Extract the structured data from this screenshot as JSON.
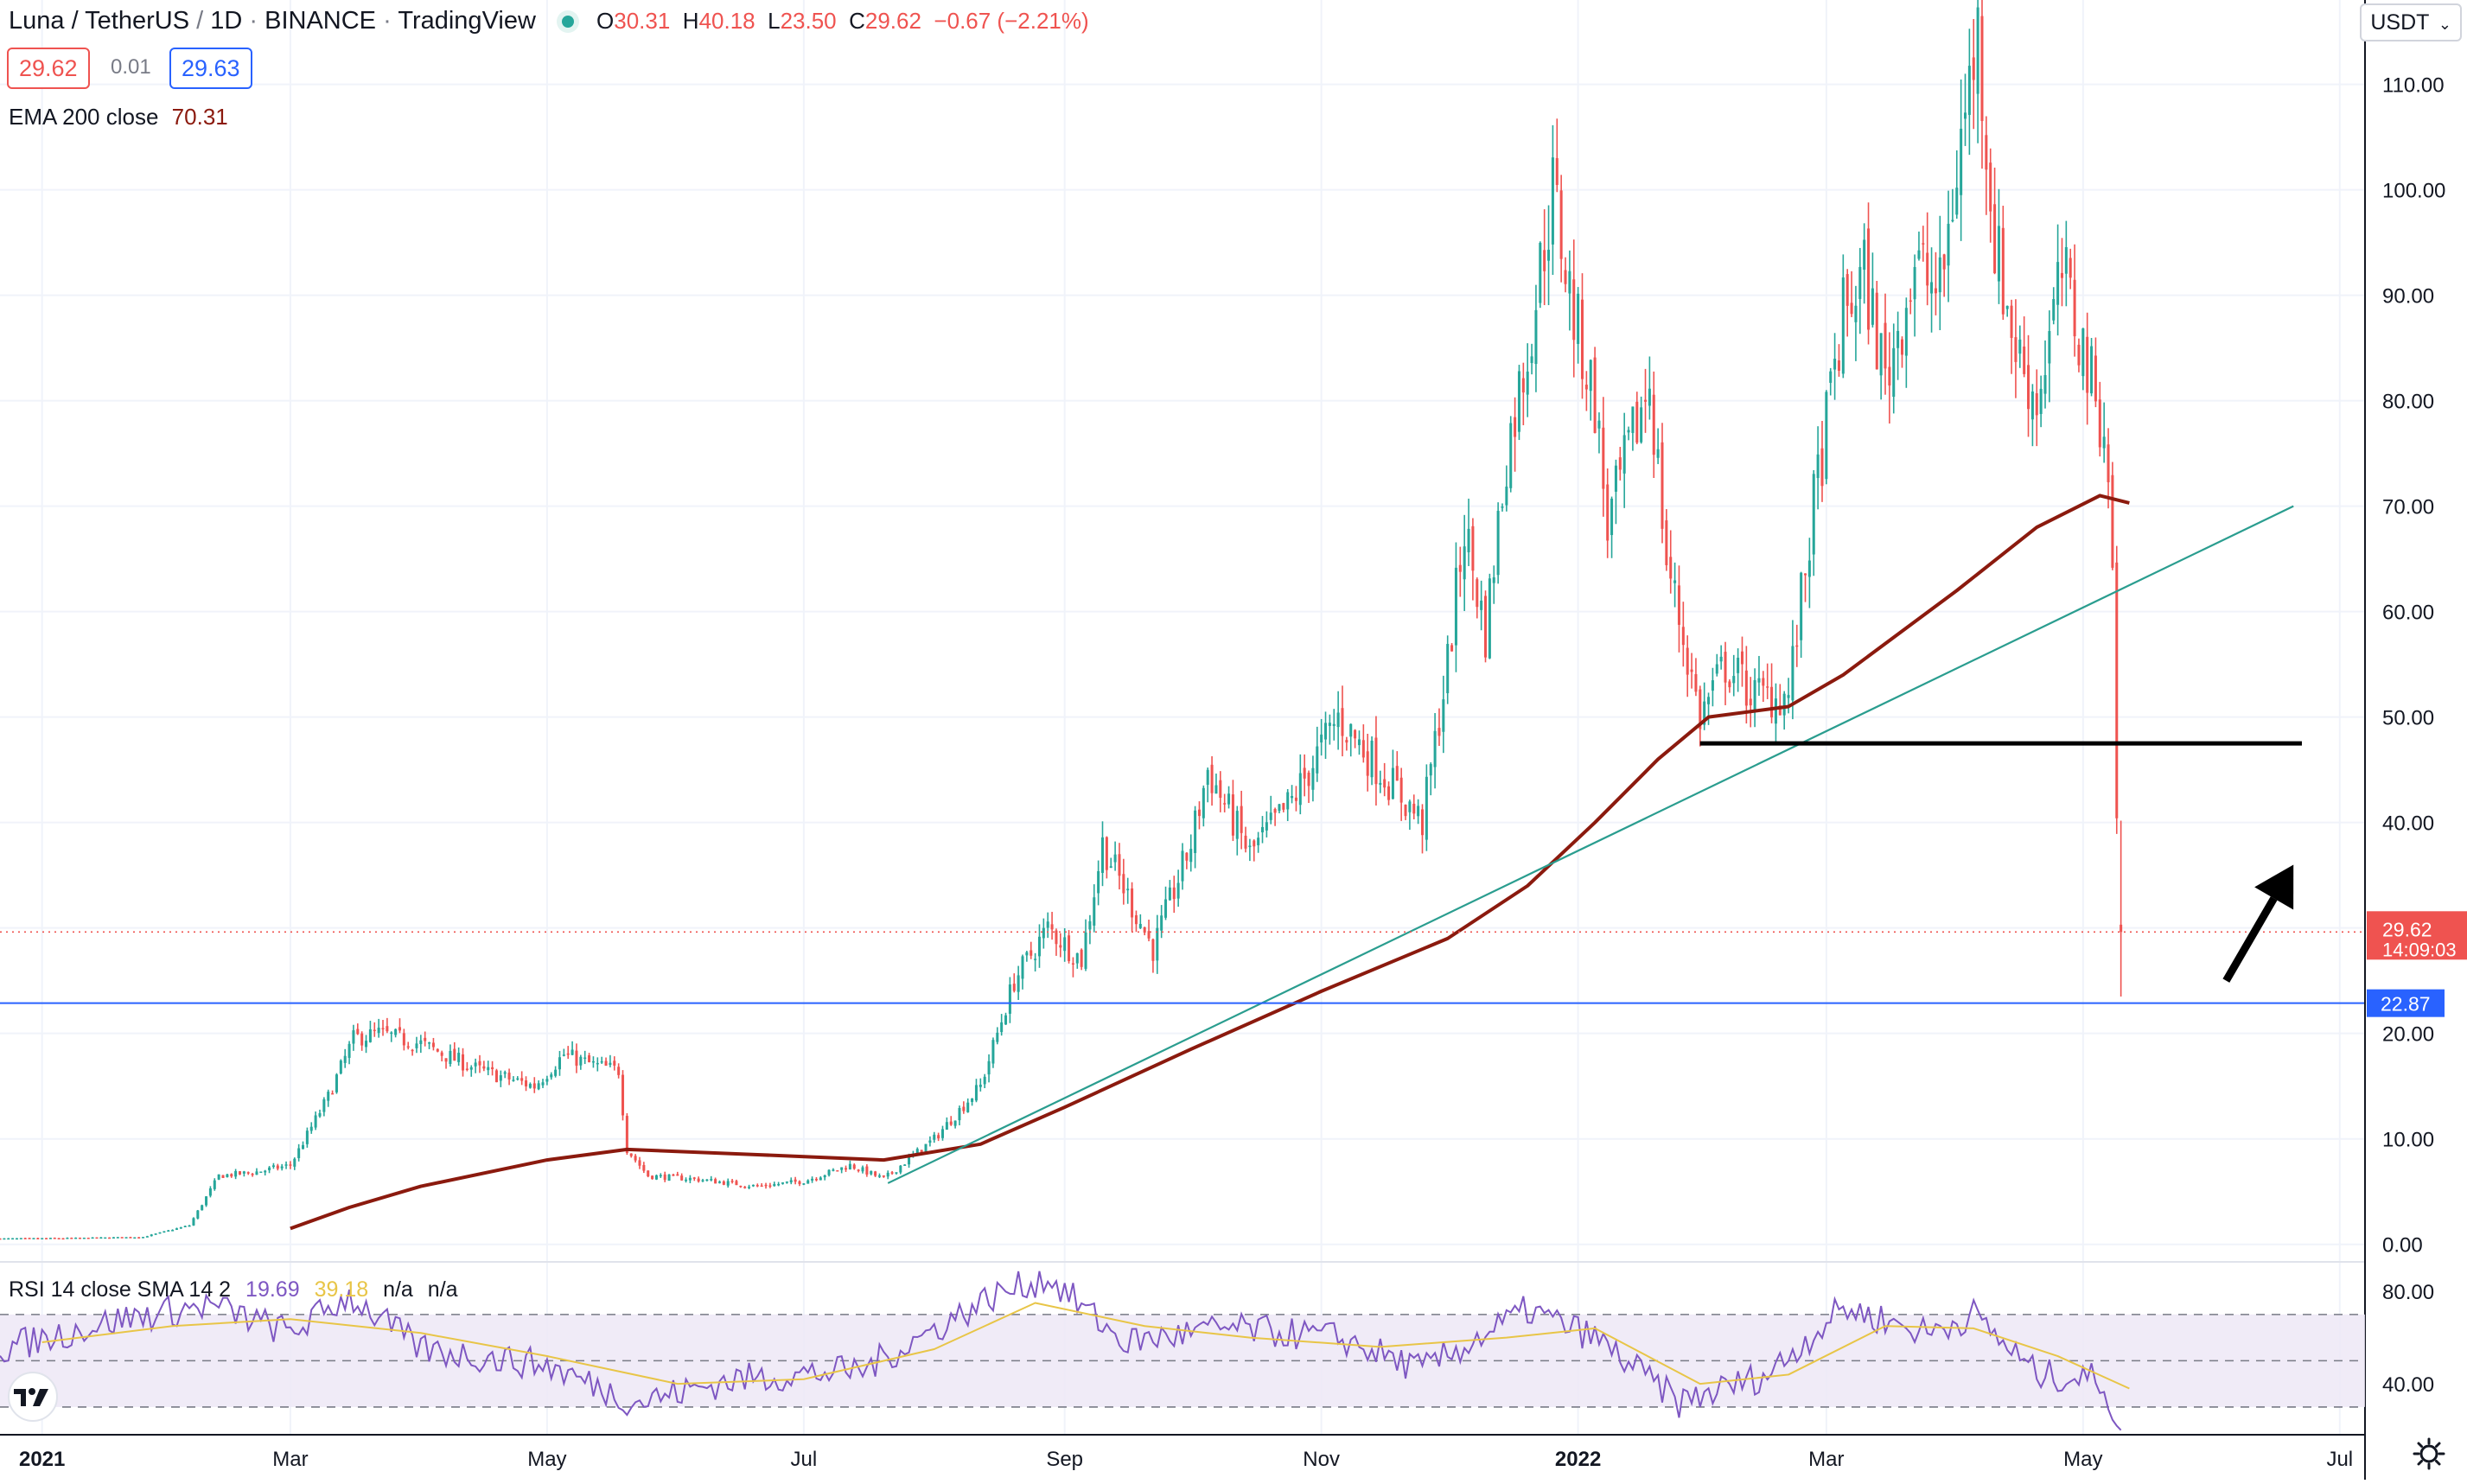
{
  "header": {
    "symbol": "Luna / TetherUS",
    "interval": "1D",
    "exchange": "BINANCE",
    "platform": "TradingView",
    "ohlc": {
      "o_label": "O",
      "o": "30.31",
      "h_label": "H",
      "h": "40.18",
      "l_label": "L",
      "l": "23.50",
      "c_label": "C",
      "c": "29.62",
      "change": "−0.67 (−2.21%)"
    },
    "sell_price": "29.62",
    "spread": "0.01",
    "buy_price": "29.63",
    "ema_label": "EMA 200 close",
    "ema_value": "70.31",
    "currency": "USDT"
  },
  "rsi_header": {
    "label": "RSI 14 close SMA 14 2",
    "rsi_value": "19.69",
    "sma_value": "39.18",
    "na1": "n/a",
    "na2": "n/a"
  },
  "price_tags": {
    "last_price": "29.62",
    "countdown": "14:09:03",
    "support_level": "22.87"
  },
  "colors": {
    "up": "#26a69a",
    "down": "#ef5350",
    "ema": "#8b1a0e",
    "trendline": "#2a9d8f",
    "support": "#2962ff",
    "rsi": "#7e57c2",
    "rsi_sma": "#e8c547",
    "rsi_band": "#ede7f6"
  },
  "chart_data": {
    "type": "candlestick",
    "price_axis": {
      "ticks": [
        0,
        10,
        20,
        30,
        40,
        50,
        60,
        70,
        80,
        90,
        100,
        110
      ],
      "tick_labels": [
        "0.00",
        "10.00",
        "20.00",
        "30.00",
        "40.00",
        "50.00",
        "60.00",
        "70.00",
        "80.00",
        "90.00",
        "100.00",
        "110.00"
      ],
      "range": [
        -1.5,
        118
      ]
    },
    "time_axis": {
      "tick_dates": [
        "2021-01-01",
        "2021-03-01",
        "2021-05-01",
        "2021-07-01",
        "2021-09-01",
        "2021-11-01",
        "2022-01-01",
        "2022-03-01",
        "2022-05-01",
        "2022-07-01"
      ],
      "tick_labels": [
        "2021",
        "Mar",
        "May",
        "Jul",
        "Sep",
        "Nov",
        "2022",
        "Mar",
        "May",
        "Jul"
      ],
      "range": [
        "2020-12-22",
        "2022-07-07"
      ]
    },
    "price_path": [
      [
        "2020-12-22",
        0.55
      ],
      [
        "2021-01-10",
        0.6
      ],
      [
        "2021-01-25",
        0.7
      ],
      [
        "2021-02-05",
        1.8
      ],
      [
        "2021-02-12",
        6.5
      ],
      [
        "2021-02-20",
        6.8
      ],
      [
        "2021-03-01",
        7.5
      ],
      [
        "2021-03-10",
        14
      ],
      [
        "2021-03-16",
        19.5
      ],
      [
        "2021-03-22",
        20
      ],
      [
        "2021-04-01",
        19
      ],
      [
        "2021-04-15",
        16.5
      ],
      [
        "2021-04-28",
        15
      ],
      [
        "2021-05-05",
        18
      ],
      [
        "2021-05-12",
        17
      ],
      [
        "2021-05-18",
        16.5
      ],
      [
        "2021-05-20",
        9
      ],
      [
        "2021-05-25",
        6.5
      ],
      [
        "2021-06-05",
        6.2
      ],
      [
        "2021-06-20",
        5.5
      ],
      [
        "2021-07-01",
        6
      ],
      [
        "2021-07-12",
        7.5
      ],
      [
        "2021-07-20",
        6.2
      ],
      [
        "2021-08-01",
        10
      ],
      [
        "2021-08-12",
        15
      ],
      [
        "2021-08-20",
        25
      ],
      [
        "2021-08-28",
        30
      ],
      [
        "2021-09-05",
        27
      ],
      [
        "2021-09-10",
        38
      ],
      [
        "2021-09-22",
        28
      ],
      [
        "2021-10-01",
        38
      ],
      [
        "2021-10-05",
        45
      ],
      [
        "2021-10-15",
        37
      ],
      [
        "2021-10-25",
        42
      ],
      [
        "2021-11-05",
        50
      ],
      [
        "2021-11-15",
        45
      ],
      [
        "2021-11-25",
        40
      ],
      [
        "2021-12-01",
        55
      ],
      [
        "2021-12-05",
        68
      ],
      [
        "2021-12-10",
        58
      ],
      [
        "2021-12-15",
        75
      ],
      [
        "2021-12-20",
        85
      ],
      [
        "2021-12-26",
        100
      ],
      [
        "2021-12-31",
        88
      ],
      [
        "2022-01-05",
        80
      ],
      [
        "2022-01-08",
        68
      ],
      [
        "2022-01-18",
        82
      ],
      [
        "2022-01-22",
        65
      ],
      [
        "2022-01-30",
        50
      ],
      [
        "2022-02-05",
        55
      ],
      [
        "2022-02-12",
        52
      ],
      [
        "2022-02-20",
        52
      ],
      [
        "2022-02-26",
        70
      ],
      [
        "2022-03-05",
        88
      ],
      [
        "2022-03-10",
        92
      ],
      [
        "2022-03-15",
        82
      ],
      [
        "2022-03-22",
        93
      ],
      [
        "2022-03-28",
        90
      ],
      [
        "2022-04-02",
        105
      ],
      [
        "2022-04-06",
        115
      ],
      [
        "2022-04-10",
        95
      ],
      [
        "2022-04-15",
        85
      ],
      [
        "2022-04-20",
        80
      ],
      [
        "2022-04-26",
        92
      ],
      [
        "2022-05-01",
        85
      ],
      [
        "2022-05-04",
        80
      ],
      [
        "2022-05-06",
        78
      ],
      [
        "2022-05-08",
        65
      ],
      [
        "2022-05-09",
        40
      ],
      [
        "2022-05-10",
        30
      ]
    ],
    "ema_200": [
      [
        "2021-03-01",
        1.5
      ],
      [
        "2021-03-15",
        3.5
      ],
      [
        "2021-04-01",
        5.5
      ],
      [
        "2021-05-01",
        8
      ],
      [
        "2021-05-20",
        9
      ],
      [
        "2021-06-20",
        8.5
      ],
      [
        "2021-07-20",
        8
      ],
      [
        "2021-08-12",
        9.5
      ],
      [
        "2021-09-01",
        13
      ],
      [
        "2021-10-01",
        18.5
      ],
      [
        "2021-11-01",
        24
      ],
      [
        "2021-12-01",
        29
      ],
      [
        "2021-12-20",
        34
      ],
      [
        "2022-01-05",
        40
      ],
      [
        "2022-01-20",
        46
      ],
      [
        "2022-02-01",
        50
      ],
      [
        "2022-02-20",
        51
      ],
      [
        "2022-03-05",
        54
      ],
      [
        "2022-04-01",
        62
      ],
      [
        "2022-04-20",
        68
      ],
      [
        "2022-05-05",
        71
      ],
      [
        "2022-05-12",
        70.3
      ]
    ],
    "trendline": [
      [
        "2021-07-21",
        5.8
      ],
      [
        "2022-06-20",
        70
      ]
    ],
    "resistance_line": {
      "price": 47.5,
      "from": "2022-01-30",
      "to": "2022-06-22"
    },
    "support_line": {
      "price": 22.87
    },
    "last_price_line": {
      "price": 29.62
    },
    "arrow": {
      "from": [
        "2022-06-04",
        25
      ],
      "to": [
        "2022-06-20",
        36
      ]
    },
    "rsi": {
      "axis_ticks": [
        40,
        80
      ],
      "axis_tick_labels": [
        "40.00",
        "80.00"
      ],
      "band": [
        30,
        70
      ],
      "range": [
        18,
        92
      ],
      "path": [
        [
          "2020-12-22",
          55
        ],
        [
          "2021-01-20",
          68
        ],
        [
          "2021-02-10",
          74
        ],
        [
          "2021-03-01",
          62
        ],
        [
          "2021-03-15",
          78
        ],
        [
          "2021-04-01",
          55
        ],
        [
          "2021-05-01",
          48
        ],
        [
          "2021-05-22",
          32
        ],
        [
          "2021-06-15",
          42
        ],
        [
          "2021-07-15",
          46
        ],
        [
          "2021-08-15",
          78
        ],
        [
          "2021-08-28",
          86
        ],
        [
          "2021-09-15",
          58
        ],
        [
          "2021-10-10",
          64
        ],
        [
          "2021-11-05",
          60
        ],
        [
          "2021-11-25",
          46
        ],
        [
          "2021-12-20",
          72
        ],
        [
          "2022-01-05",
          60
        ],
        [
          "2022-01-25",
          32
        ],
        [
          "2022-02-15",
          44
        ],
        [
          "2022-03-05",
          73
        ],
        [
          "2022-03-25",
          62
        ],
        [
          "2022-04-05",
          70
        ],
        [
          "2022-04-20",
          44
        ],
        [
          "2022-05-05",
          42
        ],
        [
          "2022-05-10",
          21
        ]
      ],
      "sma_path": [
        [
          "2021-01-01",
          58
        ],
        [
          "2021-02-01",
          65
        ],
        [
          "2021-03-01",
          68
        ],
        [
          "2021-04-01",
          62
        ],
        [
          "2021-05-01",
          52
        ],
        [
          "2021-06-01",
          40
        ],
        [
          "2021-07-01",
          42
        ],
        [
          "2021-08-01",
          55
        ],
        [
          "2021-08-25",
          75
        ],
        [
          "2021-09-20",
          65
        ],
        [
          "2021-10-15",
          60
        ],
        [
          "2021-11-15",
          56
        ],
        [
          "2021-12-15",
          60
        ],
        [
          "2022-01-05",
          64
        ],
        [
          "2022-01-30",
          40
        ],
        [
          "2022-02-20",
          44
        ],
        [
          "2022-03-15",
          65
        ],
        [
          "2022-04-05",
          64
        ],
        [
          "2022-04-25",
          52
        ],
        [
          "2022-05-12",
          38
        ]
      ]
    }
  }
}
